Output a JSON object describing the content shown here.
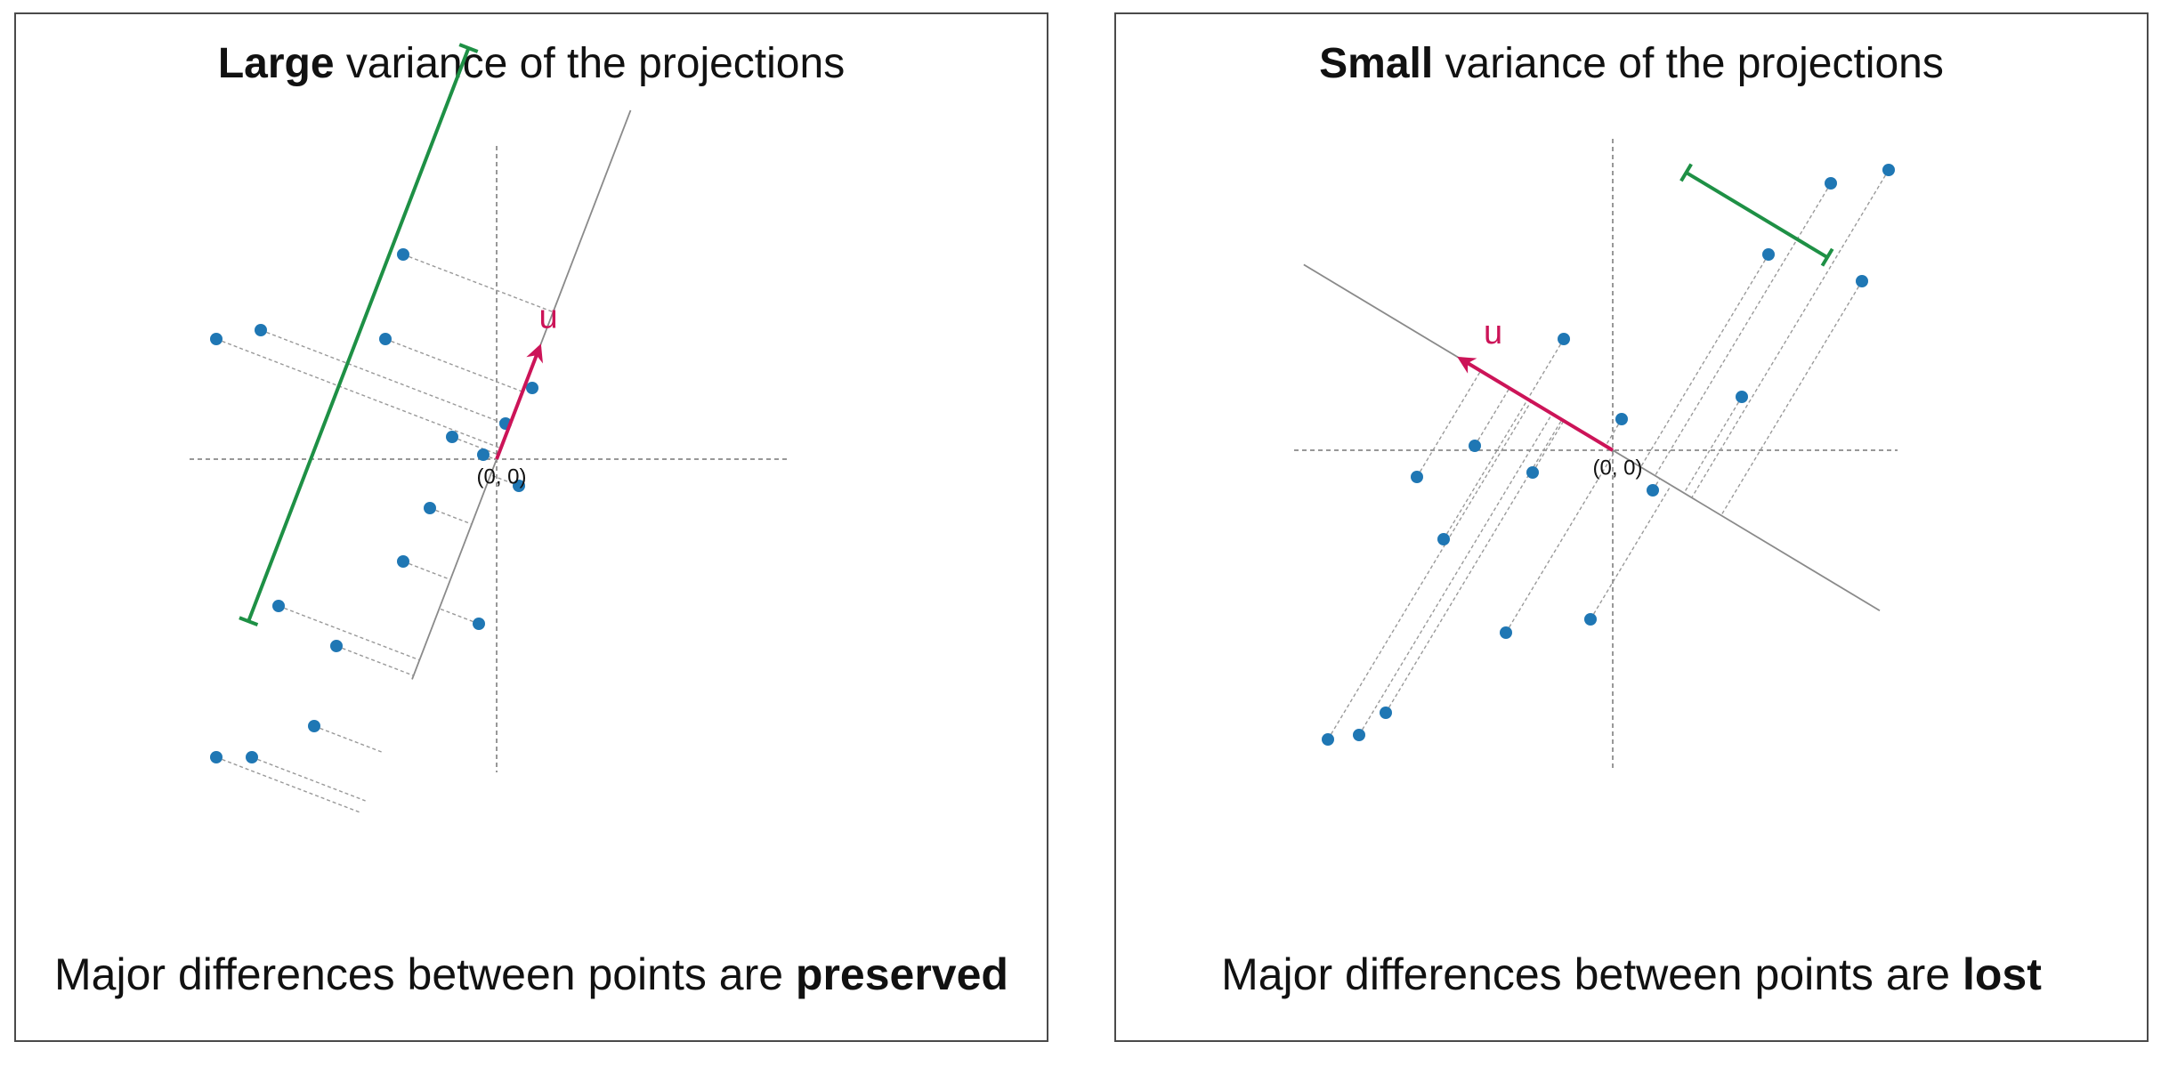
{
  "colors": {
    "point": "#1f77b4",
    "vector": "#cc1458",
    "range_bar": "#1e9045",
    "axis": "#777777",
    "projection_line": "#999999",
    "frame": "#4a4a4a"
  },
  "panels": [
    {
      "id": "left",
      "title_bold": "Large",
      "title_rest": " variance of the projections",
      "caption_text": "Major differences between points are ",
      "caption_bold": "preserved",
      "origin_label": "(0, 0)",
      "vector_label": "u",
      "direction_deg": 69,
      "points": [
        [
          -6.3,
          2.7
        ],
        [
          -5.3,
          2.9
        ],
        [
          -2.1,
          4.6
        ],
        [
          -2.5,
          2.7
        ],
        [
          -1.0,
          0.5
        ],
        [
          -0.3,
          0.1
        ],
        [
          0.2,
          0.8
        ],
        [
          0.8,
          1.6
        ],
        [
          0.5,
          -0.6
        ],
        [
          -1.5,
          -1.1
        ],
        [
          -2.1,
          -2.3
        ],
        [
          -0.4,
          -3.7
        ],
        [
          -4.9,
          -3.3
        ],
        [
          -3.6,
          -4.2
        ],
        [
          -4.1,
          -6.0
        ],
        [
          -5.5,
          -6.7
        ],
        [
          -6.3,
          -6.7
        ]
      ]
    },
    {
      "id": "right",
      "title_bold": "Small",
      "title_rest": " variance of the projections",
      "caption_text": "Major differences between points are ",
      "caption_bold": "lost",
      "origin_label": "(0, 0)",
      "vector_label": "u",
      "direction_deg": 149,
      "points": [
        [
          6.2,
          6.3
        ],
        [
          4.9,
          6.0
        ],
        [
          3.5,
          4.4
        ],
        [
          5.6,
          3.8
        ],
        [
          -1.1,
          2.5
        ],
        [
          0.2,
          0.7
        ],
        [
          2.9,
          1.2
        ],
        [
          -3.1,
          0.1
        ],
        [
          -1.8,
          -0.5
        ],
        [
          -4.4,
          -0.6
        ],
        [
          0.9,
          -0.9
        ],
        [
          -3.8,
          -2.0
        ],
        [
          -2.4,
          -4.1
        ],
        [
          -0.5,
          -3.8
        ],
        [
          -5.1,
          -5.9
        ],
        [
          -5.7,
          -6.4
        ],
        [
          -6.4,
          -6.5
        ]
      ]
    }
  ]
}
